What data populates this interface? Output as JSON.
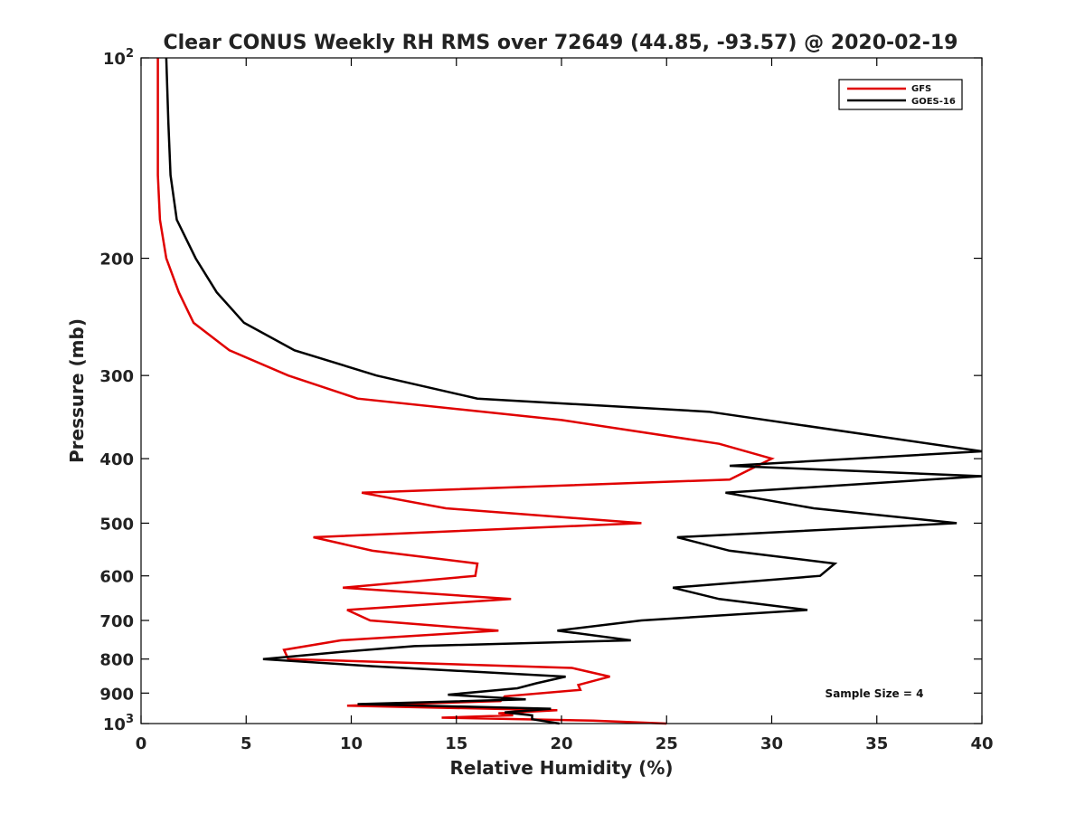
{
  "chart_data": {
    "type": "line",
    "title": "Clear CONUS Weekly RH RMS over 72649 (44.85, -93.57) @ 2020-02-19",
    "xlabel": "Relative Humidity (%)",
    "ylabel": "Pressure (mb)",
    "xlim": [
      0,
      40
    ],
    "ylim": [
      100,
      1000
    ],
    "y_scale": "log",
    "y_reversed": true,
    "grid": false,
    "legend_position": "top-right",
    "x_ticks": [
      0,
      5,
      10,
      15,
      20,
      25,
      30,
      35,
      40
    ],
    "x_tick_labels": [
      "0",
      "5",
      "10",
      "15",
      "20",
      "25",
      "30",
      "35",
      "40"
    ],
    "y_ticks": [
      100,
      200,
      300,
      400,
      500,
      600,
      700,
      800,
      900,
      1000
    ],
    "y_tick_labels": [
      "10^2",
      "200",
      "300",
      "400",
      "500",
      "600",
      "700",
      "800",
      "900",
      "10^3"
    ],
    "annotation": "Sample Size = 4",
    "series": [
      {
        "name": "GFS",
        "color": "#e00000",
        "points": [
          [
            0.8,
            100
          ],
          [
            0.8,
            125
          ],
          [
            0.8,
            150
          ],
          [
            0.9,
            175
          ],
          [
            1.2,
            200
          ],
          [
            1.8,
            225
          ],
          [
            2.5,
            250
          ],
          [
            4.2,
            275
          ],
          [
            7.0,
            300
          ],
          [
            10.3,
            325
          ],
          [
            20,
            350
          ],
          [
            27.5,
            380
          ],
          [
            30.0,
            400
          ],
          [
            28.0,
            430
          ],
          [
            10.5,
            450
          ],
          [
            14.5,
            475
          ],
          [
            23.8,
            500
          ],
          [
            8.2,
            525
          ],
          [
            11.0,
            550
          ],
          [
            16.0,
            575
          ],
          [
            15.9,
            600
          ],
          [
            9.6,
            625
          ],
          [
            17.6,
            650
          ],
          [
            9.8,
            675
          ],
          [
            10.9,
            700
          ],
          [
            17.0,
            725
          ],
          [
            9.5,
            750
          ],
          [
            6.8,
            775
          ],
          [
            7.0,
            800
          ],
          [
            20.5,
            825
          ],
          [
            22.3,
            850
          ],
          [
            20.8,
            875
          ],
          [
            20.9,
            890
          ],
          [
            17.3,
            910
          ],
          [
            17.1,
            925
          ],
          [
            9.8,
            940
          ],
          [
            19.8,
            955
          ],
          [
            17.0,
            965
          ],
          [
            17.7,
            972
          ],
          [
            14.3,
            980
          ],
          [
            21.5,
            990
          ],
          [
            25.0,
            1000
          ]
        ]
      },
      {
        "name": "GOES-16",
        "color": "#000000",
        "points": [
          [
            1.2,
            100
          ],
          [
            1.3,
            125
          ],
          [
            1.4,
            150
          ],
          [
            1.7,
            175
          ],
          [
            2.6,
            200
          ],
          [
            3.6,
            225
          ],
          [
            4.9,
            250
          ],
          [
            7.3,
            275
          ],
          [
            11.2,
            300
          ],
          [
            16,
            325
          ],
          [
            27,
            340
          ],
          [
            40,
            390
          ],
          [
            28.0,
            410
          ],
          [
            40.0,
            425
          ],
          [
            27.8,
            450
          ],
          [
            32.0,
            475
          ],
          [
            38.8,
            500
          ],
          [
            25.5,
            525
          ],
          [
            28.0,
            550
          ],
          [
            33.0,
            575
          ],
          [
            32.3,
            600
          ],
          [
            25.3,
            625
          ],
          [
            27.5,
            650
          ],
          [
            31.7,
            675
          ],
          [
            23.8,
            700
          ],
          [
            19.8,
            725
          ],
          [
            23.3,
            750
          ],
          [
            13.0,
            765
          ],
          [
            9.6,
            780
          ],
          [
            5.8,
            800
          ],
          [
            11.0,
            820
          ],
          [
            20.2,
            850
          ],
          [
            18.8,
            870
          ],
          [
            17.9,
            885
          ],
          [
            14.6,
            905
          ],
          [
            18.3,
            920
          ],
          [
            10.3,
            935
          ],
          [
            19.5,
            950
          ],
          [
            17.3,
            962
          ],
          [
            18.6,
            972
          ],
          [
            18.6,
            985
          ],
          [
            19.9,
            1000
          ]
        ]
      }
    ]
  }
}
